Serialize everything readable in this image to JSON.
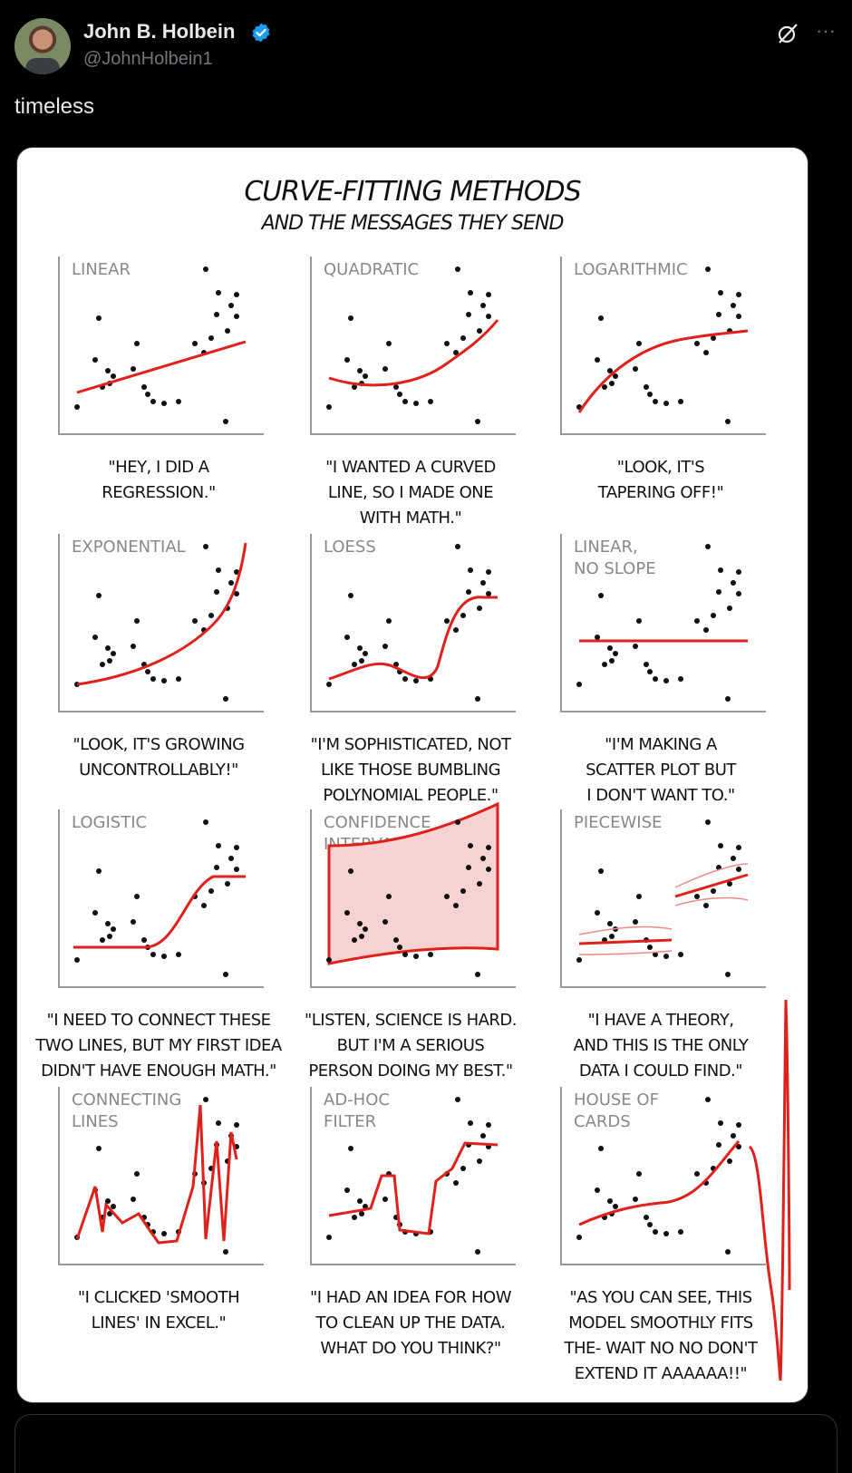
{
  "author": {
    "name": "John B. Holbein",
    "handle": "@JohnHolbein1",
    "verified": true
  },
  "post": {
    "text": "timeless"
  },
  "icons": [
    "grok-icon",
    "more-icon",
    "verified-icon"
  ],
  "colors": {
    "fit_line": "#e0201b",
    "confidence_fill": "#f7d2d2",
    "verified": "#1d9bf0"
  },
  "comic": {
    "title": "CURVE-FITTING METHODS",
    "subtitle": "AND THE MESSAGES THEY SEND",
    "panels": [
      {
        "label": "LINEAR",
        "caption": [
          "\"HEY, I DID A",
          "REGRESSION.\""
        ]
      },
      {
        "label": "QUADRATIC",
        "caption": [
          "\"I WANTED A CURVED",
          "LINE, SO I MADE ONE",
          "WITH MATH.\""
        ]
      },
      {
        "label": "LOGARITHMIC",
        "caption": [
          "\"LOOK, IT'S",
          "TAPERING OFF!\""
        ]
      },
      {
        "label": "EXPONENTIAL",
        "caption": [
          "\"LOOK, IT'S GROWING",
          "UNCONTROLLABLY!\""
        ]
      },
      {
        "label": "LOESS",
        "caption": [
          "\"I'M SOPHISTICATED, NOT",
          "LIKE THOSE BUMBLING",
          "POLYNOMIAL PEOPLE.\""
        ]
      },
      {
        "label": "LINEAR, NO SLOPE",
        "caption": [
          "\"I'M MAKING A",
          "SCATTER PLOT BUT",
          "I DON'T WANT TO.\""
        ]
      },
      {
        "label": "LOGISTIC",
        "caption": [
          "\"I NEED TO CONNECT THESE",
          "TWO LINES, BUT MY FIRST IDEA",
          "DIDN'T HAVE ENOUGH MATH.\""
        ]
      },
      {
        "label": "CONFIDENCE INTERVAL",
        "caption": [
          "\"LISTEN, SCIENCE IS HARD.",
          "BUT I'M A SERIOUS",
          "PERSON DOING MY BEST.\""
        ]
      },
      {
        "label": "PIECEWISE",
        "caption": [
          "\"I HAVE A THEORY,",
          "AND THIS IS THE ONLY",
          "DATA I COULD FIND.\""
        ]
      },
      {
        "label": "CONNECTING LINES",
        "caption": [
          "\"I CLICKED 'SMOOTH",
          "LINES' IN EXCEL.\""
        ]
      },
      {
        "label": "AD-HOC FILTER",
        "caption": [
          "\"I HAD AN IDEA FOR HOW",
          "TO CLEAN UP THE DATA.",
          "WHAT DO YOU THINK?\""
        ]
      },
      {
        "label": "HOUSE OF CARDS",
        "caption": [
          "\"AS YOU CAN SEE, THIS",
          "MODEL SMOOTHLY FITS",
          "THE- WAIT NO NO DON'T",
          "EXTEND IT AAAAAA!!\""
        ]
      }
    ]
  }
}
